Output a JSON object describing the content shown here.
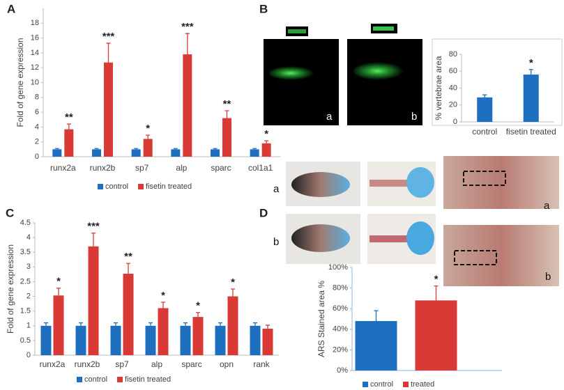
{
  "panel_labels": [
    "A",
    "B",
    "C",
    "D"
  ],
  "image_labels": {
    "b": [
      "a",
      "b"
    ],
    "d_left": [
      "a",
      "b"
    ],
    "d_right": [
      "a",
      "b"
    ]
  },
  "chart_data": [
    {
      "type": "bar",
      "ylabel": "Fold of gene expression",
      "categories": [
        "runx2a",
        "runx2b",
        "sp7",
        "alp",
        "sparc",
        "col1a1"
      ],
      "series": [
        {
          "name": "control",
          "color": "#1f6fc0",
          "values": [
            1,
            1,
            1,
            1,
            1,
            1
          ],
          "errors": [
            0.1,
            0.1,
            0.1,
            0.1,
            0.1,
            0.1
          ]
        },
        {
          "name": "fisetin treated",
          "color": "#d93a35",
          "values": [
            3.7,
            12.7,
            2.4,
            13.8,
            5.2,
            1.8
          ],
          "errors": [
            0.7,
            2.6,
            0.5,
            2.8,
            1.0,
            0.35
          ],
          "annotations": [
            "**",
            "***",
            "*",
            "***",
            "**",
            "*"
          ]
        }
      ],
      "ylim": [
        0,
        20
      ],
      "yticks": [
        0,
        2,
        4,
        6,
        8,
        10,
        12,
        14,
        16,
        18
      ],
      "legend": "bottom"
    },
    {
      "type": "bar",
      "ylabel": "% vertebrae area",
      "categories": [
        "control",
        "fisetin treated"
      ],
      "series": [
        {
          "color": "#1f6fc0",
          "values": [
            29,
            56
          ],
          "errors": [
            3,
            6
          ],
          "annotations": [
            null,
            "*"
          ]
        }
      ],
      "ylim": [
        0,
        80
      ],
      "yticks": [
        0,
        20,
        40,
        60,
        80
      ]
    },
    {
      "type": "bar",
      "ylabel": "Fold of gene expression",
      "categories": [
        "runx2a",
        "runx2b",
        "sp7",
        "alp",
        "sparc",
        "opn",
        "rank"
      ],
      "series": [
        {
          "name": "control",
          "color": "#1f6fc0",
          "values": [
            1,
            1,
            1,
            1,
            1,
            1,
            1
          ],
          "errors": [
            0.1,
            0.1,
            0.1,
            0.1,
            0.1,
            0.1,
            0.1
          ]
        },
        {
          "name": "fisetin treated",
          "color": "#d93a35",
          "values": [
            2.03,
            3.7,
            2.77,
            1.6,
            1.3,
            2.0,
            0.9
          ],
          "errors": [
            0.25,
            0.45,
            0.35,
            0.2,
            0.15,
            0.25,
            0.12
          ],
          "annotations": [
            "*",
            "***",
            "**",
            "*",
            "*",
            "*",
            null
          ]
        }
      ],
      "ylim": [
        0,
        4.5
      ],
      "yticks": [
        0,
        0.5,
        1,
        1.5,
        2,
        2.5,
        3,
        3.5,
        4,
        4.5
      ],
      "legend": "bottom"
    },
    {
      "type": "bar",
      "ylabel": "ARS Stained area %",
      "categories": [
        null
      ],
      "series": [
        {
          "name": "control",
          "color": "#1f6fc0",
          "values": [
            48
          ],
          "errors": [
            10
          ]
        },
        {
          "name": "treated",
          "color": "#d93a35",
          "values": [
            68
          ],
          "errors": [
            14
          ],
          "annotations": [
            "*"
          ]
        }
      ],
      "ylim": [
        0,
        100
      ],
      "yticks": [
        {
          "value": 0,
          "label": "0%"
        },
        {
          "value": 20,
          "label": "20%"
        },
        {
          "value": 40,
          "label": "40%"
        },
        {
          "value": 60,
          "label": "60%"
        },
        {
          "value": 80,
          "label": "80%"
        },
        {
          "value": 100,
          "label": "100%"
        }
      ],
      "legend": "bottom"
    }
  ]
}
